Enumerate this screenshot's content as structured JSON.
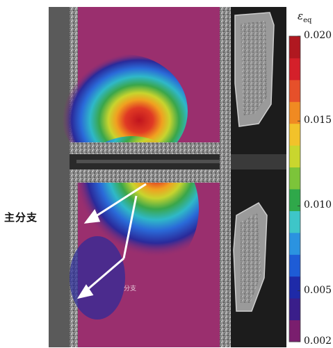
{
  "labels": {
    "main_branch": "主分支",
    "sub_branch": "分支",
    "strain_symbol": "ε",
    "strain_subscript": "eq"
  },
  "colorbar": {
    "min": 0.002,
    "max": 0.02,
    "ticks": [
      "0.020",
      "0.015",
      "0.010",
      "0.005",
      "0.002"
    ],
    "colors": [
      "#7a1e6e",
      "#3a1e8a",
      "#1e2aa8",
      "#1e5cd6",
      "#2b93e0",
      "#3ec6c8",
      "#2fa84a",
      "#7cc43a",
      "#c9d62e",
      "#f2c22a",
      "#f08a22",
      "#e6502a",
      "#d4202a",
      "#b01820"
    ]
  },
  "colors": {
    "background_field": "#9a2f6e",
    "specimen_gray": "#4a4a4a",
    "arrow": "#ffffff"
  }
}
